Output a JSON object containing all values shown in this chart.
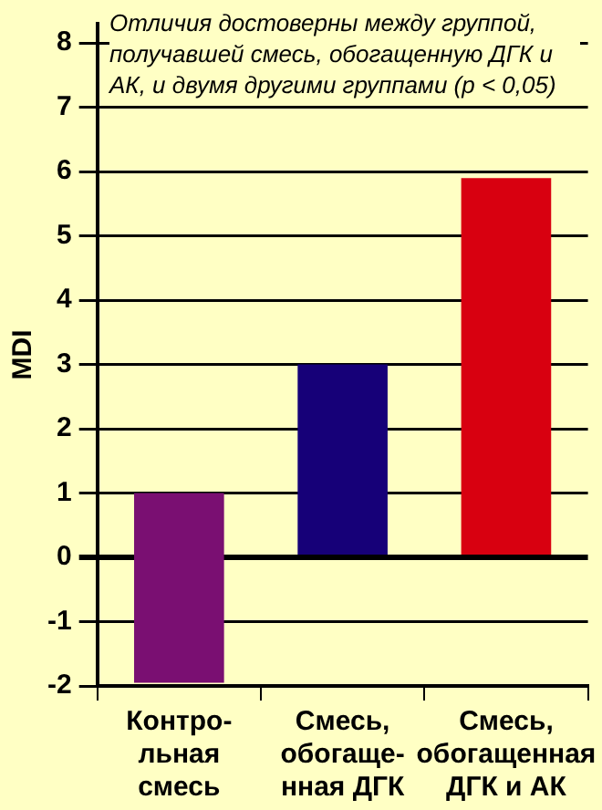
{
  "chart_data": {
    "type": "bar",
    "ylabel": "MDI",
    "categories": [
      "Контро-\nльная\nсмесь",
      "Смесь,\nобогаще-\nнная ДГК",
      "Смесь,\nобогащенная\nДГК и АК"
    ],
    "values": [
      2.95,
      3.0,
      5.9
    ],
    "base": [
      -1.95,
      0,
      0
    ],
    "colors": [
      "#7a0f72",
      "#160078",
      "#d80010"
    ],
    "ylim": [
      -2,
      8.3
    ],
    "yticks": [
      -2,
      -1,
      0,
      1,
      2,
      3,
      4,
      5,
      6,
      7,
      8
    ],
    "grid": "y",
    "legend": false,
    "annotations": [
      "Отличия достоверны между группой, получавшей смесь, обогащенную ДГК и АК, и двумя другими группами (p < 0,05)"
    ]
  }
}
